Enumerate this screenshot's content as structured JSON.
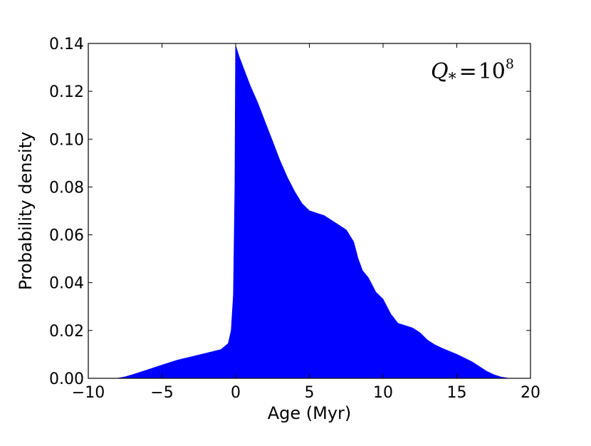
{
  "chart_data": {
    "type": "area",
    "xlabel": "Age (Myr)",
    "ylabel": "Probability density",
    "xlim": [
      -10,
      20
    ],
    "ylim": [
      0,
      0.14
    ],
    "xticks": [
      -10,
      -5,
      0,
      5,
      10,
      15,
      20
    ],
    "yticks": [
      0.0,
      0.02,
      0.04,
      0.06,
      0.08,
      0.1,
      0.12,
      0.14
    ],
    "xtick_labels": [
      "−10",
      "−5",
      "0",
      "5",
      "10",
      "15",
      "20"
    ],
    "ytick_labels": [
      "0.00",
      "0.02",
      "0.04",
      "0.06",
      "0.08",
      "0.10",
      "0.12",
      "0.14"
    ],
    "annotation": {
      "symbol": "Q",
      "subscript": "*",
      "equals": "=",
      "base": "10",
      "exponent": "8"
    },
    "fill_color": "#0000ff",
    "grid": false,
    "series": [
      {
        "x": [
          -10,
          -8,
          -7.5,
          -7,
          -6,
          -5,
          -4,
          -3,
          -2,
          -1,
          -0.5,
          -0.3,
          -0.15,
          -0.05,
          0,
          0.2,
          0.5,
          1,
          1.5,
          2,
          2.5,
          3,
          3.5,
          4,
          4.5,
          5,
          5.5,
          6,
          6.5,
          7,
          7.5,
          8,
          8.3,
          8.6,
          9,
          9.5,
          10,
          10.5,
          11,
          11.5,
          12,
          12.5,
          13,
          13.5,
          14,
          15,
          16,
          17,
          17.5,
          18,
          18.5,
          20
        ],
        "y": [
          0,
          0,
          0.0006,
          0.0015,
          0.0035,
          0.0055,
          0.0075,
          0.009,
          0.0105,
          0.012,
          0.0145,
          0.02,
          0.035,
          0.08,
          0.139,
          0.135,
          0.13,
          0.122,
          0.115,
          0.107,
          0.099,
          0.091,
          0.084,
          0.078,
          0.073,
          0.07,
          0.069,
          0.068,
          0.066,
          0.064,
          0.062,
          0.057,
          0.05,
          0.045,
          0.042,
          0.036,
          0.033,
          0.027,
          0.023,
          0.022,
          0.021,
          0.019,
          0.016,
          0.014,
          0.0125,
          0.01,
          0.007,
          0.003,
          0.0015,
          0.0005,
          0,
          0
        ]
      }
    ]
  }
}
